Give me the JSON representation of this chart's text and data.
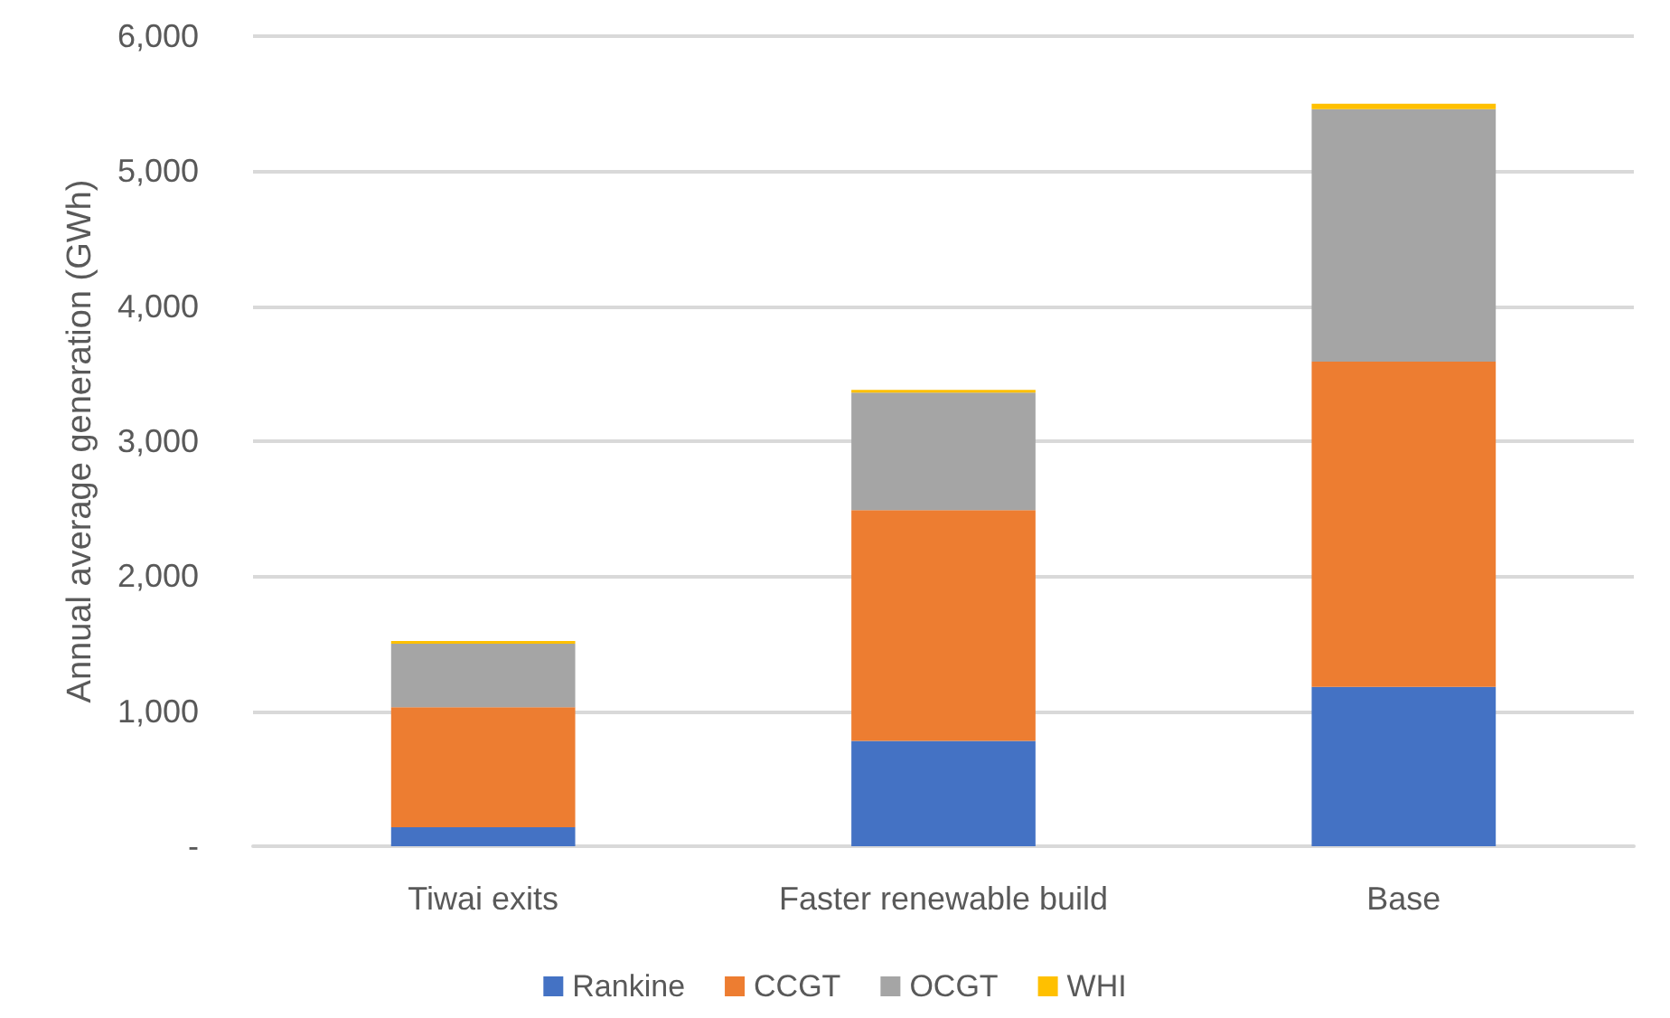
{
  "chart_data": {
    "type": "bar",
    "stacked": true,
    "ylabel": "Annual average generation (GWh)",
    "categories": [
      "Tiwai exits",
      "Faster renewable build",
      "Base"
    ],
    "series": [
      {
        "name": "Rankine",
        "color": "#4472c4",
        "values": [
          140,
          780,
          1180
        ]
      },
      {
        "name": "CCGT",
        "color": "#ed7d31",
        "values": [
          890,
          1710,
          2410
        ]
      },
      {
        "name": "OCGT",
        "color": "#a5a5a5",
        "values": [
          470,
          870,
          1870
        ]
      },
      {
        "name": "WHI",
        "color": "#ffc000",
        "values": [
          20,
          20,
          40
        ]
      }
    ],
    "ylim": [
      0,
      6000
    ],
    "yticks": [
      {
        "value": 0,
        "label": "-"
      },
      {
        "value": 1000,
        "label": "1,000"
      },
      {
        "value": 2000,
        "label": "2,000"
      },
      {
        "value": 3000,
        "label": "3,000"
      },
      {
        "value": 4000,
        "label": "4,000"
      },
      {
        "value": 5000,
        "label": "5,000"
      },
      {
        "value": 6000,
        "label": "6,000"
      }
    ],
    "grid": "y",
    "legend": "bottom"
  }
}
